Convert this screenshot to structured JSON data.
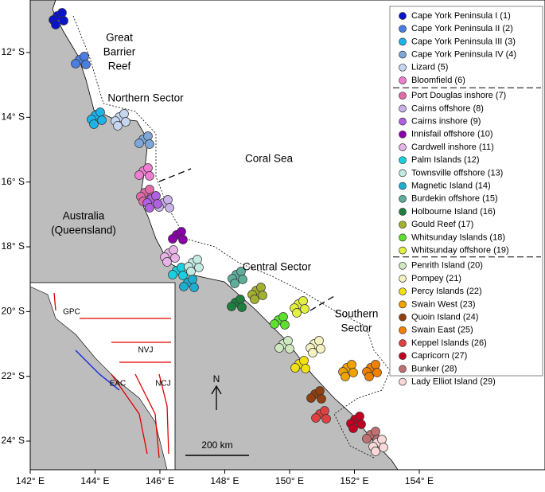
{
  "map": {
    "xticks": [
      {
        "value": 142,
        "label": "142° E"
      },
      {
        "value": 144,
        "label": "144° E"
      },
      {
        "value": 146,
        "label": "146° E"
      },
      {
        "value": 148,
        "label": "148° E"
      },
      {
        "value": 150,
        "label": "150° E"
      },
      {
        "value": 152,
        "label": "152° E"
      },
      {
        "value": 154,
        "label": "154° E"
      }
    ],
    "yticks": [
      {
        "value": -12,
        "label": "12° S"
      },
      {
        "value": -14,
        "label": "14° S"
      },
      {
        "value": -16,
        "label": "16° S"
      },
      {
        "value": -18,
        "label": "18° S"
      },
      {
        "value": -20,
        "label": "20° S"
      },
      {
        "value": -22,
        "label": "22° S"
      },
      {
        "value": -24,
        "label": "24° S"
      }
    ],
    "legend": {
      "items": [
        {
          "name": "Cape York Peninsula I (1)",
          "color": "#0a14c8"
        },
        {
          "name": "Cape York Peninsula II (2)",
          "color": "#4a7ee0"
        },
        {
          "name": "Cape York Peninsula III (3)",
          "color": "#1ab4e8"
        },
        {
          "name": "Cape York Peninsula IV (4)",
          "color": "#7fa6d8"
        },
        {
          "name": "Lizard (5)",
          "color": "#c6d6f0"
        },
        {
          "name": "Bloomfield (6)",
          "color": "#f07ed0"
        },
        {
          "name": "Port Douglas inshore (7)",
          "color": "#e06aa8"
        },
        {
          "name": "Cairns offshore (8)",
          "color": "#c8b2e8"
        },
        {
          "name": "Cairns inshore (9)",
          "color": "#b060e0"
        },
        {
          "name": "Innisfail offshore (10)",
          "color": "#8a00a8"
        },
        {
          "name": "Cardwell inshore (11)",
          "color": "#e8b4e8"
        },
        {
          "name": "Palm Islands (12)",
          "color": "#1ad0e0"
        },
        {
          "name": "Townsville offshore (13)",
          "color": "#c2eae0"
        },
        {
          "name": "Magnetic Island (14)",
          "color": "#1eaed0"
        },
        {
          "name": "Burdekin offshore (15)",
          "color": "#5eae9c"
        },
        {
          "name": "Holbourne Island (16)",
          "color": "#1e7e3e"
        },
        {
          "name": "Gould Reef (17)",
          "color": "#a4b030"
        },
        {
          "name": "Whitsunday Islands (18)",
          "color": "#5ee030"
        },
        {
          "name": "Whitsunday offshore (19)",
          "color": "#e2f040"
        },
        {
          "name": "Penrith Island (20)",
          "color": "#d0e8c0"
        },
        {
          "name": "Pompey (21)",
          "color": "#f4f2c0"
        },
        {
          "name": "Percy Islands (22)",
          "color": "#f2e010"
        },
        {
          "name": "Swain West (23)",
          "color": "#f0a200"
        },
        {
          "name": "Quoin Island (24)",
          "color": "#904010"
        },
        {
          "name": "Swain East (25)",
          "color": "#f08000"
        },
        {
          "name": "Keppel Islands (26)",
          "color": "#e04040"
        },
        {
          "name": "Capricorn (27)",
          "color": "#c00020"
        },
        {
          "name": "Bunker (28)",
          "color": "#c07070"
        },
        {
          "name": "Lady Elliot Island (29)",
          "color": "#f8d8d8"
        }
      ]
    },
    "labels": [
      {
        "lines": [
          "Great",
          "Barrier",
          "Reef"
        ]
      },
      {
        "lines": [
          "Northern Sector"
        ]
      },
      {
        "lines": [
          "Coral Sea"
        ]
      },
      {
        "lines": [
          "Australia",
          "(Queensland)"
        ]
      },
      {
        "lines": [
          "Central Sector"
        ]
      },
      {
        "lines": [
          "Southern",
          "Sector"
        ]
      }
    ],
    "inset_labels": [
      "GPC",
      "NVJ",
      "EAC",
      "NCJ"
    ],
    "north": "N",
    "scale_bar": "200 km"
  }
}
